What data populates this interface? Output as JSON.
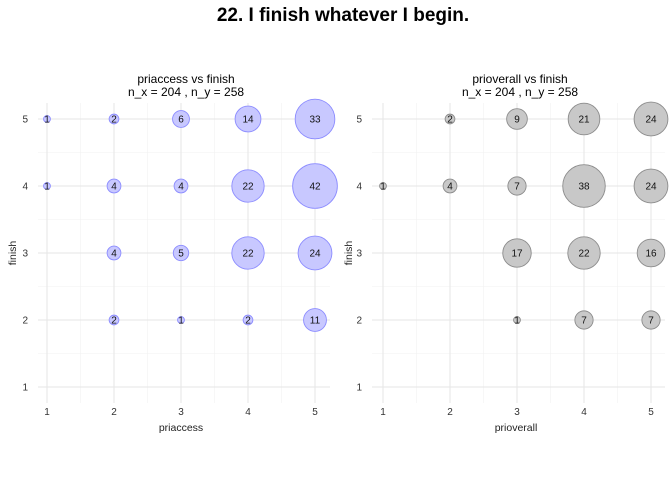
{
  "title": "22. I finish whatever I begin.",
  "chart_data": [
    {
      "type": "scatter",
      "subtype": "bubble",
      "title": "priaccess vs finish",
      "subtitle": "n_x = 204 , n_y = 258",
      "xlabel": "priaccess",
      "ylabel": "finish",
      "xlim": [
        1,
        5
      ],
      "ylim": [
        1,
        5
      ],
      "xticks": [
        "1",
        "2",
        "3",
        "4",
        "5"
      ],
      "yticks": [
        "1",
        "2",
        "3",
        "4",
        "5"
      ],
      "grid": true,
      "fill_color": "#c8c8ff",
      "stroke_color": "#8c8cff",
      "points": [
        {
          "x": 1,
          "y": 5,
          "value": 1
        },
        {
          "x": 2,
          "y": 5,
          "value": 2
        },
        {
          "x": 3,
          "y": 5,
          "value": 6
        },
        {
          "x": 4,
          "y": 5,
          "value": 14
        },
        {
          "x": 5,
          "y": 5,
          "value": 33
        },
        {
          "x": 1,
          "y": 4,
          "value": 1
        },
        {
          "x": 2,
          "y": 4,
          "value": 4
        },
        {
          "x": 3,
          "y": 4,
          "value": 4
        },
        {
          "x": 4,
          "y": 4,
          "value": 22
        },
        {
          "x": 5,
          "y": 4,
          "value": 42
        },
        {
          "x": 2,
          "y": 3,
          "value": 4
        },
        {
          "x": 3,
          "y": 3,
          "value": 5
        },
        {
          "x": 4,
          "y": 3,
          "value": 22
        },
        {
          "x": 5,
          "y": 3,
          "value": 24
        },
        {
          "x": 2,
          "y": 2,
          "value": 2
        },
        {
          "x": 3,
          "y": 2,
          "value": 1
        },
        {
          "x": 4,
          "y": 2,
          "value": 2
        },
        {
          "x": 5,
          "y": 2,
          "value": 11
        }
      ]
    },
    {
      "type": "scatter",
      "subtype": "bubble",
      "title": "prioverall vs finish",
      "subtitle": "n_x = 204 , n_y = 258",
      "xlabel": "prioverall",
      "ylabel": "finish",
      "xlim": [
        1,
        5
      ],
      "ylim": [
        1,
        5
      ],
      "xticks": [
        "1",
        "2",
        "3",
        "4",
        "5"
      ],
      "yticks": [
        "1",
        "2",
        "3",
        "4",
        "5"
      ],
      "grid": true,
      "fill_color": "#c8c8c8",
      "stroke_color": "#8c8c8c",
      "points": [
        {
          "x": 2,
          "y": 5,
          "value": 2
        },
        {
          "x": 3,
          "y": 5,
          "value": 9
        },
        {
          "x": 4,
          "y": 5,
          "value": 21
        },
        {
          "x": 5,
          "y": 5,
          "value": 24
        },
        {
          "x": 1,
          "y": 4,
          "value": 1
        },
        {
          "x": 2,
          "y": 4,
          "value": 4
        },
        {
          "x": 3,
          "y": 4,
          "value": 7
        },
        {
          "x": 4,
          "y": 4,
          "value": 38
        },
        {
          "x": 5,
          "y": 4,
          "value": 24
        },
        {
          "x": 3,
          "y": 3,
          "value": 17
        },
        {
          "x": 4,
          "y": 3,
          "value": 22
        },
        {
          "x": 5,
          "y": 3,
          "value": 16
        },
        {
          "x": 3,
          "y": 2,
          "value": 1
        },
        {
          "x": 4,
          "y": 2,
          "value": 7
        },
        {
          "x": 5,
          "y": 2,
          "value": 7
        }
      ]
    }
  ]
}
